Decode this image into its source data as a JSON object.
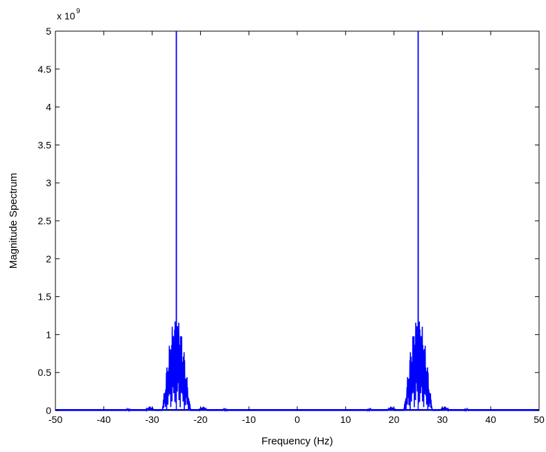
{
  "chart_data": {
    "type": "line",
    "title": "",
    "xlabel": "Frequency (Hz)",
    "ylabel": "Magnitude Spectrum",
    "y_exponent_label": "x 10",
    "y_exponent": "9",
    "xlim": [
      -50,
      50
    ],
    "ylim": [
      0,
      5
    ],
    "y_scale_factor": 1000000000,
    "xticks": [
      -50,
      -40,
      -30,
      -20,
      -10,
      0,
      10,
      20,
      30,
      40,
      50
    ],
    "yticks": [
      0,
      0.5,
      1,
      1.5,
      2,
      2.5,
      3,
      3.5,
      4,
      4.5,
      5
    ],
    "xtick_labels": [
      "-50",
      "-40",
      "-30",
      "-20",
      "-10",
      "0",
      "10",
      "20",
      "30",
      "40",
      "50"
    ],
    "ytick_labels": [
      "0",
      "0.5",
      "1",
      "1.5",
      "2",
      "2.5",
      "3",
      "3.5",
      "4",
      "4.5",
      "5"
    ],
    "grid": false,
    "line_color": "#0000ff",
    "series": [
      {
        "peaks": [
          {
            "center": -25,
            "peak_value": 5.0
          },
          {
            "center": 25,
            "peak_value": 5.0
          }
        ],
        "sidelobes": [
          {
            "center": -25,
            "halfwidth": 3,
            "max": 1.3
          },
          {
            "center": 25,
            "halfwidth": 3,
            "max": 1.3
          }
        ],
        "minor_bumps": [
          {
            "x": -35,
            "value": 0.02
          },
          {
            "x": -30.5,
            "value": 0.06
          },
          {
            "x": -19.5,
            "value": 0.06
          },
          {
            "x": -15,
            "value": 0.02
          },
          {
            "x": 15,
            "value": 0.02
          },
          {
            "x": 19.5,
            "value": 0.06
          },
          {
            "x": 30.5,
            "value": 0.06
          },
          {
            "x": 35,
            "value": 0.02
          }
        ]
      }
    ]
  }
}
